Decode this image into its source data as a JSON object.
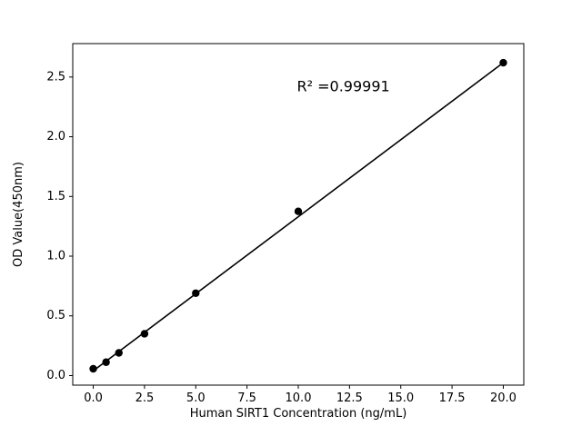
{
  "figure": {
    "background": "#ffffff"
  },
  "chart_data": {
    "type": "scatter",
    "title": "",
    "xlabel": "Human SIRT1 Concentration (ng/mL)",
    "ylabel": "OD Value(450nm)",
    "annotation": "R² =0.99991",
    "r_squared": 0.99991,
    "points": {
      "x": [
        0,
        0.625,
        1.25,
        2.5,
        5,
        10,
        20
      ],
      "y": [
        0.057,
        0.112,
        0.19,
        0.35,
        0.69,
        1.375,
        2.62
      ]
    },
    "fit_line": {
      "x": [
        0,
        20
      ],
      "y": [
        0.04,
        2.62
      ]
    },
    "xlim": [
      -1,
      21
    ],
    "ylim": [
      -0.08,
      2.78
    ],
    "xticks": [
      0.0,
      2.5,
      5.0,
      7.5,
      10.0,
      12.5,
      15.0,
      17.5,
      20.0
    ],
    "xtick_labels": [
      "0.0",
      "2.5",
      "5.0",
      "7.5",
      "10.0",
      "12.5",
      "15.0",
      "17.5",
      "20.0"
    ],
    "yticks": [
      0.0,
      0.5,
      1.0,
      1.5,
      2.0,
      2.5
    ],
    "ytick_labels": [
      "0.0",
      "0.5",
      "1.0",
      "1.5",
      "2.0",
      "2.5"
    ],
    "annotation_position": {
      "x": 12.2,
      "y": 2.38
    },
    "colors": {
      "marker": "#000000",
      "line": "#000000",
      "axis": "#000000",
      "background": "#ffffff"
    },
    "grid": false,
    "legend": null
  }
}
